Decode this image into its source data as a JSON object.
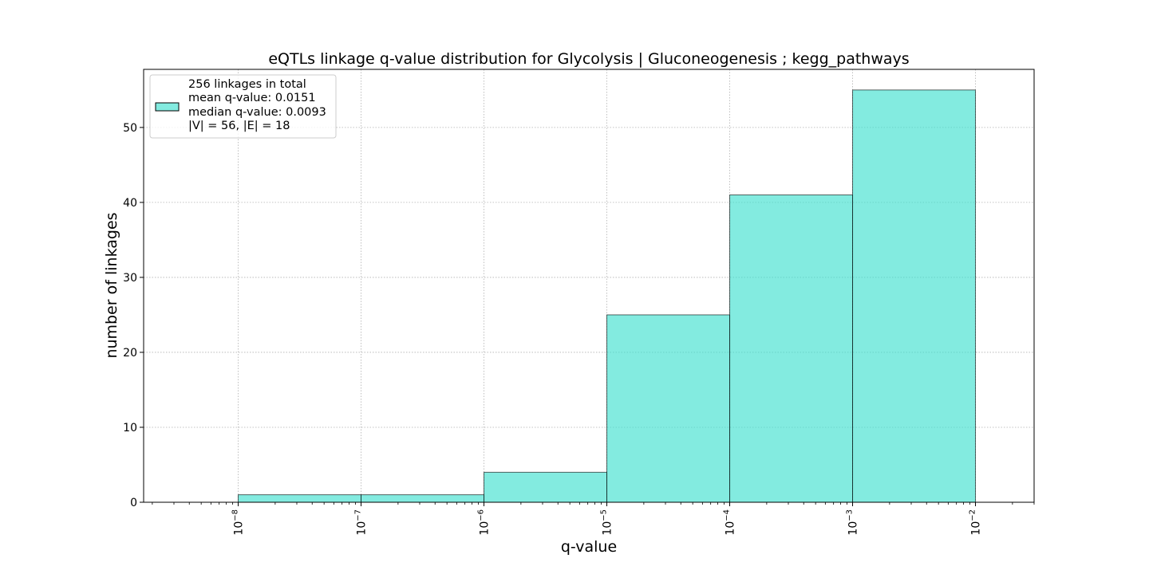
{
  "chart_data": {
    "type": "bar",
    "title": "eQTLs linkage q-value distribution for Glycolysis | Gluconeogenesis ; kegg_pathways",
    "xlabel": "q-value",
    "ylabel": "number of linkages",
    "xscale": "log",
    "xlim": [
      1.7e-09,
      0.03
    ],
    "ylim": [
      0,
      57.75
    ],
    "x_ticks": [
      {
        "value": 1e-08,
        "base": "10",
        "exp": "−8"
      },
      {
        "value": 1e-07,
        "base": "10",
        "exp": "−7"
      },
      {
        "value": 1e-06,
        "base": "10",
        "exp": "−6"
      },
      {
        "value": 1e-05,
        "base": "10",
        "exp": "−5"
      },
      {
        "value": 0.0001,
        "base": "10",
        "exp": "−4"
      },
      {
        "value": 0.001,
        "base": "10",
        "exp": "−3"
      },
      {
        "value": 0.01,
        "base": "10",
        "exp": "−2"
      }
    ],
    "y_ticks": [
      0,
      10,
      20,
      30,
      40,
      50
    ],
    "bins": [
      {
        "lo": 1e-08,
        "hi": 1e-07,
        "count": 1
      },
      {
        "lo": 1e-07,
        "hi": 1e-06,
        "count": 1
      },
      {
        "lo": 1e-06,
        "hi": 1e-05,
        "count": 4
      },
      {
        "lo": 1e-05,
        "hi": 0.0001,
        "count": 25
      },
      {
        "lo": 0.0001,
        "hi": 0.001,
        "count": 41
      },
      {
        "lo": 0.001,
        "hi": 0.01,
        "count": 55
      }
    ],
    "bar_color": "#40E0D0",
    "bar_opacity": 0.65,
    "edge_color": "#000000",
    "grid": true,
    "legend": {
      "placement": "upper left",
      "lines": [
        "256 linkages in total",
        "mean q-value: 0.0151",
        "median q-value: 0.0093",
        "|V| = 56, |E| = 18"
      ]
    }
  }
}
